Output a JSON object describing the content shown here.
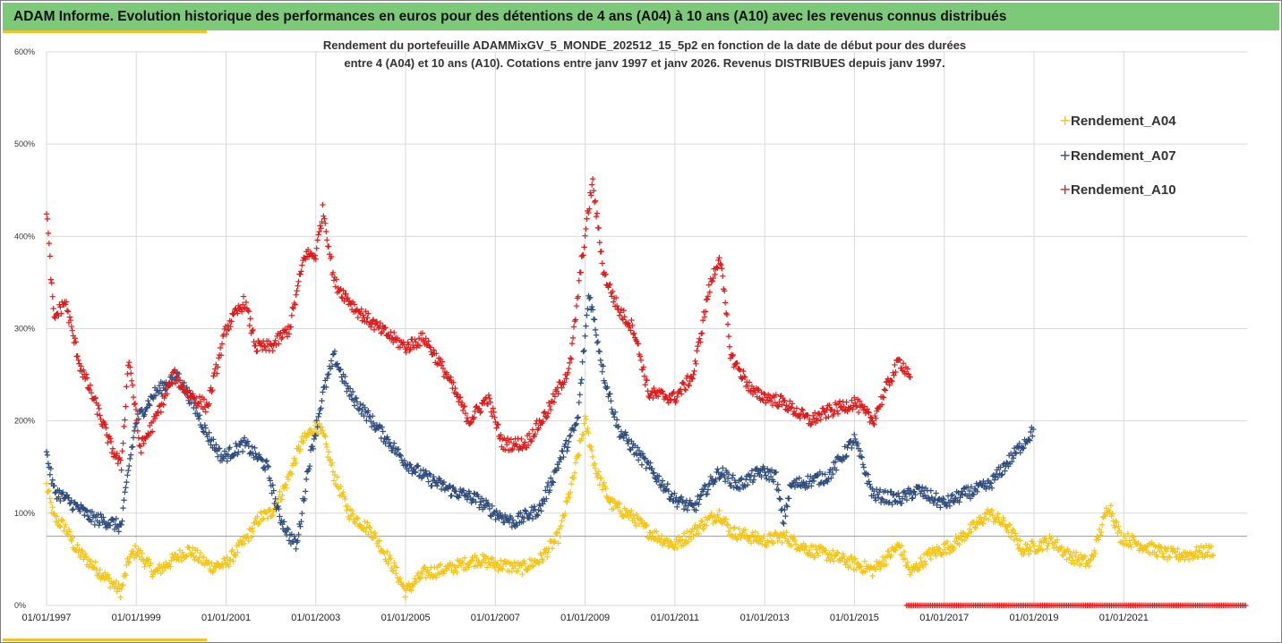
{
  "header": {
    "title": "ADAM Informe. Evolution historique des performances en euros pour des détentions de 4 ans (A04) à 10 ans (A10) avec les revenus connus distribués"
  },
  "chart_data": {
    "type": "scatter",
    "subtitle_lines": [
      "Rendement du portefeuille ADAMMixGV_5_MONDE_202512_15_5p2 en fonction de la date de début pour des durées",
      "entre 4 (A04) et 10 ans (A10). Cotations entre janv 1997 et janv 2026. Revenus DISTRIBUES depuis janv 1997."
    ],
    "x_range": [
      "1997-01-01",
      "2023-10-01"
    ],
    "x_tick_labels": [
      "01/01/1997",
      "01/01/1999",
      "01/01/2001",
      "01/01/2003",
      "01/01/2005",
      "01/01/2007",
      "01/01/2009",
      "01/01/2011",
      "01/01/2013",
      "01/01/2015",
      "01/01/2017",
      "01/01/2019",
      "01/01/2021"
    ],
    "y_range": [
      0,
      600
    ],
    "y_tick_labels": [
      "0%",
      "100%",
      "200%",
      "300%",
      "400%",
      "500%",
      "600%"
    ],
    "reference_line_y": 75,
    "grid": true,
    "marker": "+",
    "legend_position": "top-right",
    "series": [
      {
        "name": "Rendement_A04",
        "color": "#f5c518",
        "keypoints": [
          [
            "1997-01-01",
            130
          ],
          [
            "1997-03-01",
            95
          ],
          [
            "1997-06-01",
            85
          ],
          [
            "1997-09-01",
            60
          ],
          [
            "1998-01-01",
            45
          ],
          [
            "1998-05-01",
            30
          ],
          [
            "1998-09-01",
            15
          ],
          [
            "1998-11-01",
            50
          ],
          [
            "1999-01-01",
            60
          ],
          [
            "1999-06-01",
            35
          ],
          [
            "1999-11-01",
            50
          ],
          [
            "2000-03-01",
            60
          ],
          [
            "2000-09-01",
            42
          ],
          [
            "2001-01-01",
            45
          ],
          [
            "2001-07-01",
            75
          ],
          [
            "2001-10-01",
            95
          ],
          [
            "2002-01-01",
            100
          ],
          [
            "2002-05-01",
            130
          ],
          [
            "2002-09-01",
            175
          ],
          [
            "2003-01-01",
            195
          ],
          [
            "2003-03-01",
            185
          ],
          [
            "2003-06-01",
            140
          ],
          [
            "2003-10-01",
            100
          ],
          [
            "2004-04-01",
            80
          ],
          [
            "2004-10-01",
            40
          ],
          [
            "2005-01-01",
            15
          ],
          [
            "2005-06-01",
            35
          ],
          [
            "2006-01-01",
            40
          ],
          [
            "2006-08-01",
            50
          ],
          [
            "2007-01-01",
            45
          ],
          [
            "2007-08-01",
            40
          ],
          [
            "2008-01-01",
            50
          ],
          [
            "2008-06-01",
            75
          ],
          [
            "2008-10-01",
            140
          ],
          [
            "2009-01-01",
            200
          ],
          [
            "2009-04-01",
            145
          ],
          [
            "2009-08-01",
            110
          ],
          [
            "2010-02-01",
            95
          ],
          [
            "2010-06-01",
            80
          ],
          [
            "2011-01-01",
            65
          ],
          [
            "2011-06-01",
            80
          ],
          [
            "2011-09-01",
            90
          ],
          [
            "2012-01-01",
            100
          ],
          [
            "2012-04-01",
            80
          ],
          [
            "2013-01-01",
            70
          ],
          [
            "2013-06-01",
            75
          ],
          [
            "2014-01-01",
            60
          ],
          [
            "2014-06-01",
            55
          ],
          [
            "2015-01-01",
            45
          ],
          [
            "2015-06-01",
            38
          ],
          [
            "2016-01-01",
            65
          ],
          [
            "2016-04-01",
            35
          ],
          [
            "2016-09-01",
            55
          ],
          [
            "2017-03-01",
            65
          ],
          [
            "2017-09-01",
            85
          ],
          [
            "2018-01-01",
            100
          ],
          [
            "2018-06-01",
            85
          ],
          [
            "2018-10-01",
            60
          ],
          [
            "2019-06-01",
            70
          ],
          [
            "2019-10-01",
            55
          ],
          [
            "2020-04-01",
            45
          ],
          [
            "2020-09-01",
            110
          ],
          [
            "2020-12-01",
            75
          ],
          [
            "2021-06-01",
            65
          ],
          [
            "2022-01-01",
            55
          ],
          [
            "2022-06-01",
            55
          ],
          [
            "2023-01-01",
            60
          ]
        ]
      },
      {
        "name": "Rendement_A07",
        "color": "#2f4d7e",
        "keypoints": [
          [
            "1997-01-01",
            165
          ],
          [
            "1997-03-01",
            125
          ],
          [
            "1997-08-01",
            110
          ],
          [
            "1998-01-01",
            95
          ],
          [
            "1998-06-01",
            90
          ],
          [
            "1998-09-01",
            85
          ],
          [
            "1998-11-01",
            150
          ],
          [
            "1999-01-01",
            200
          ],
          [
            "1999-06-01",
            230
          ],
          [
            "1999-12-01",
            250
          ],
          [
            "2000-04-01",
            220
          ],
          [
            "2000-08-01",
            185
          ],
          [
            "2000-12-01",
            160
          ],
          [
            "2001-06-01",
            175
          ],
          [
            "2001-12-01",
            150
          ],
          [
            "2002-03-01",
            100
          ],
          [
            "2002-06-01",
            75
          ],
          [
            "2002-08-01",
            65
          ],
          [
            "2002-11-01",
            150
          ],
          [
            "2003-03-01",
            230
          ],
          [
            "2003-06-01",
            270
          ],
          [
            "2003-10-01",
            230
          ],
          [
            "2004-06-01",
            190
          ],
          [
            "2005-01-01",
            155
          ],
          [
            "2005-06-01",
            140
          ],
          [
            "2006-01-01",
            125
          ],
          [
            "2006-08-01",
            115
          ],
          [
            "2007-01-01",
            100
          ],
          [
            "2007-06-01",
            90
          ],
          [
            "2008-01-01",
            105
          ],
          [
            "2008-06-01",
            155
          ],
          [
            "2008-11-01",
            200
          ],
          [
            "2009-02-01",
            340
          ],
          [
            "2009-06-01",
            250
          ],
          [
            "2009-10-01",
            190
          ],
          [
            "2010-06-01",
            150
          ],
          [
            "2011-01-01",
            115
          ],
          [
            "2011-06-01",
            105
          ],
          [
            "2011-10-01",
            130
          ],
          [
            "2012-01-01",
            145
          ],
          [
            "2012-06-01",
            130
          ],
          [
            "2012-12-01",
            145
          ],
          [
            "2013-04-01",
            140
          ],
          [
            "2013-06-01",
            90
          ],
          [
            "2013-08-01",
            130
          ],
          [
            "2014-06-01",
            140
          ],
          [
            "2015-01-01",
            180
          ],
          [
            "2015-06-01",
            120
          ],
          [
            "2016-01-01",
            115
          ],
          [
            "2016-06-01",
            125
          ],
          [
            "2017-01-01",
            110
          ],
          [
            "2017-06-01",
            120
          ],
          [
            "2018-01-01",
            130
          ],
          [
            "2018-06-01",
            155
          ],
          [
            "2019-01-01",
            190
          ]
        ]
      },
      {
        "name": "Rendement_A10",
        "color": "#e01b1b",
        "keypoints": [
          [
            "1997-01-01",
            430
          ],
          [
            "1997-03-01",
            310
          ],
          [
            "1997-06-01",
            330
          ],
          [
            "1997-10-01",
            260
          ],
          [
            "1998-03-01",
            210
          ],
          [
            "1998-06-01",
            175
          ],
          [
            "1998-09-01",
            150
          ],
          [
            "1998-11-01",
            270
          ],
          [
            "1999-02-01",
            170
          ],
          [
            "1999-06-01",
            200
          ],
          [
            "1999-11-01",
            250
          ],
          [
            "2000-03-01",
            230
          ],
          [
            "2000-08-01",
            215
          ],
          [
            "2001-01-01",
            300
          ],
          [
            "2001-06-01",
            330
          ],
          [
            "2001-09-01",
            280
          ],
          [
            "2002-01-01",
            280
          ],
          [
            "2002-06-01",
            300
          ],
          [
            "2002-10-01",
            380
          ],
          [
            "2003-01-01",
            380
          ],
          [
            "2003-03-01",
            430
          ],
          [
            "2003-06-01",
            350
          ],
          [
            "2003-12-01",
            320
          ],
          [
            "2004-06-01",
            300
          ],
          [
            "2005-01-01",
            280
          ],
          [
            "2005-06-01",
            290
          ],
          [
            "2005-12-01",
            250
          ],
          [
            "2006-06-01",
            200
          ],
          [
            "2006-11-01",
            225
          ],
          [
            "2007-03-01",
            175
          ],
          [
            "2007-09-01",
            175
          ],
          [
            "2008-03-01",
            210
          ],
          [
            "2008-09-01",
            260
          ],
          [
            "2008-12-01",
            370
          ],
          [
            "2009-03-01",
            460
          ],
          [
            "2009-06-01",
            360
          ],
          [
            "2009-10-01",
            320
          ],
          [
            "2010-02-01",
            300
          ],
          [
            "2010-06-01",
            230
          ],
          [
            "2011-01-01",
            225
          ],
          [
            "2011-06-01",
            250
          ],
          [
            "2011-10-01",
            340
          ],
          [
            "2012-01-01",
            380
          ],
          [
            "2012-04-01",
            270
          ],
          [
            "2012-10-01",
            230
          ],
          [
            "2013-06-01",
            220
          ],
          [
            "2014-01-01",
            200
          ],
          [
            "2014-06-01",
            210
          ],
          [
            "2015-01-01",
            220
          ],
          [
            "2015-06-01",
            200
          ],
          [
            "2015-10-01",
            240
          ],
          [
            "2016-01-01",
            265
          ],
          [
            "2016-04-01",
            250
          ]
        ]
      },
      {
        "name": "",
        "color": "#e01b1b",
        "keypoints": [
          [
            "2016-03-01",
            0
          ],
          [
            "2023-10-01",
            0
          ]
        ]
      }
    ]
  }
}
